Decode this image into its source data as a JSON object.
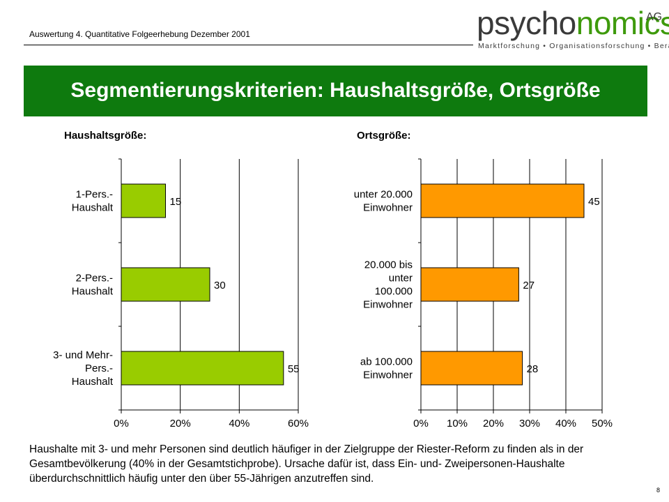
{
  "header": {
    "subtitle": "Auswertung 4. Quantitative Folgeerhebung Dezember 2001",
    "logo": {
      "word_part1": "psycho",
      "word_part2": "nomics",
      "suffix": "AG",
      "tagline": "Marktforschung • Organisationsforschung • Beratung"
    }
  },
  "banner": {
    "title": "Segmentierungskriterien: Haushaltsgröße, Ortsgröße"
  },
  "chart_data": [
    {
      "type": "bar",
      "orientation": "horizontal",
      "heading": "Haushaltsgröße:",
      "categories": [
        "1-Pers.-\nHaushalt",
        "2-Pers.-\nHaushalt",
        "3- und Mehr-\nPers.-\nHaushalt"
      ],
      "values": [
        15,
        30,
        55
      ],
      "xlim": [
        0,
        60
      ],
      "x_ticks": [
        0,
        20,
        40,
        60
      ],
      "x_tick_labels": [
        "0%",
        "20%",
        "40%",
        "60%"
      ],
      "grid": true,
      "bar_color": "#99cc00"
    },
    {
      "type": "bar",
      "orientation": "horizontal",
      "heading": "Ortsgröße:",
      "categories": [
        "unter 20.000\nEinwohner",
        "20.000 bis\nunter\n100.000\nEinwohner",
        "ab 100.000\nEinwohner"
      ],
      "values": [
        45,
        27,
        28
      ],
      "xlim": [
        0,
        50
      ],
      "x_ticks": [
        0,
        10,
        20,
        30,
        40,
        50
      ],
      "x_tick_labels": [
        "0%",
        "10%",
        "20%",
        "30%",
        "40%",
        "50%"
      ],
      "grid": true,
      "bar_color": "#ff9900"
    }
  ],
  "footer": {
    "description": "Haushalte mit 3- und mehr Personen sind deutlich häufiger in der Zielgruppe der Riester-Reform zu finden als in der Gesamtbevölkerung (40% in der Gesamtstichprobe). Ursache dafür ist, dass Ein- und- Zweipersonen-Haushalte überdurchschnittlich häufig unter den über 55-Jährigen anzutreffen sind.",
    "page_number": "8"
  }
}
